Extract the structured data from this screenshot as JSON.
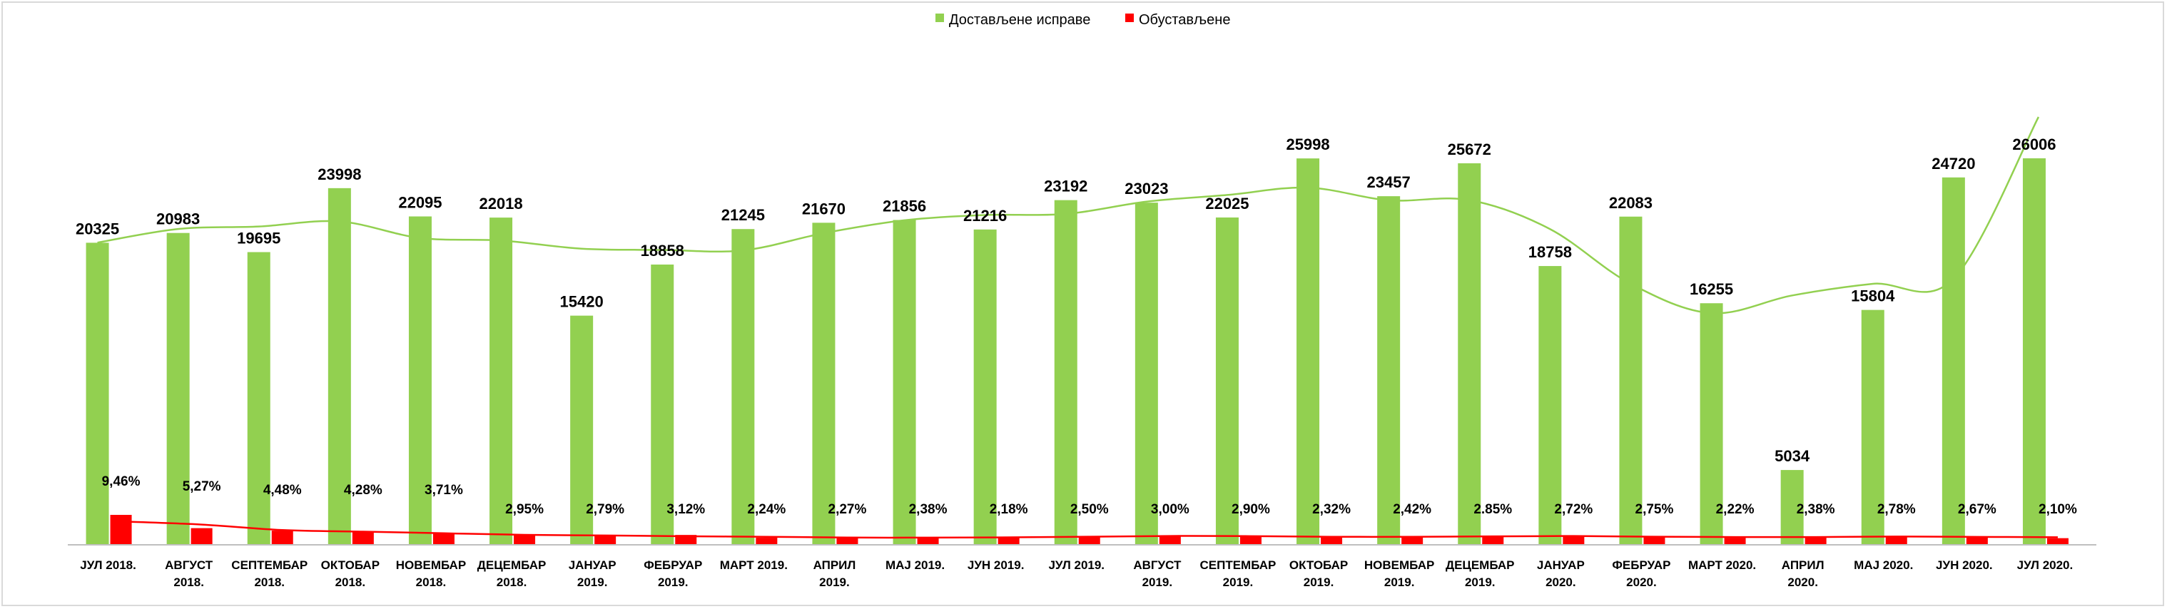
{
  "chart_data": {
    "type": "bar",
    "categories": [
      [
        "ЈУЛ 2018."
      ],
      [
        "АВГУСТ",
        "2018."
      ],
      [
        "СЕПТЕМБАР",
        "2018."
      ],
      [
        "ОКТОБАР",
        "2018."
      ],
      [
        "НОВЕМБАР",
        "2018."
      ],
      [
        "ДЕЦЕМБАР",
        "2018."
      ],
      [
        "ЈАНУАР",
        "2019."
      ],
      [
        "ФЕБРУАР",
        "2019."
      ],
      [
        "МАРТ 2019."
      ],
      [
        "АПРИЛ",
        "2019."
      ],
      [
        "МАЈ 2019."
      ],
      [
        "ЈУН 2019."
      ],
      [
        "ЈУЛ 2019."
      ],
      [
        "АВГУСТ",
        "2019."
      ],
      [
        "СЕПТЕМБАР",
        "2019."
      ],
      [
        "ОКТОБАР",
        "2019."
      ],
      [
        "НОВЕМБАР",
        "2019."
      ],
      [
        "ДЕЦЕМБАР",
        "2019."
      ],
      [
        "ЈАНУАР",
        "2020."
      ],
      [
        "ФЕБРУАР",
        "2020."
      ],
      [
        "МАРТ 2020."
      ],
      [
        "АПРИЛ",
        "2020."
      ],
      [
        "МАЈ 2020."
      ],
      [
        "ЈУН 2020."
      ],
      [
        "ЈУЛ 2020."
      ]
    ],
    "series": [
      {
        "name": "Достављене исправе",
        "color": "#92d050",
        "values": [
          20325,
          20983,
          19695,
          23998,
          22095,
          22018,
          15420,
          18858,
          21245,
          21670,
          21856,
          21216,
          23192,
          23023,
          22025,
          25998,
          23457,
          25672,
          18758,
          22083,
          16255,
          5034,
          15804,
          24720,
          26006
        ],
        "labels": [
          "20325",
          "20983",
          "19695",
          "23998",
          "22095",
          "22018",
          "15420",
          "18858",
          "21245",
          "21670",
          "21856",
          "21216",
          "23192",
          "23023",
          "22025",
          "25998",
          "23457",
          "25672",
          "18758",
          "22083",
          "16255",
          "5034",
          "15804",
          "24720",
          "26006"
        ]
      },
      {
        "name": "Обустављене",
        "color": "#ff0000",
        "values": [
          9.46,
          5.27,
          4.48,
          4.28,
          3.71,
          2.95,
          2.79,
          3.12,
          2.24,
          2.27,
          2.38,
          2.18,
          2.5,
          3.0,
          2.9,
          2.32,
          2.42,
          2.85,
          2.72,
          2.75,
          2.22,
          2.38,
          2.78,
          2.67,
          2.1
        ],
        "labels": [
          "9,46%",
          "5,27%",
          "4,48%",
          "4,28%",
          "3,71%",
          "2,95%",
          "2,79%",
          "3,12%",
          "2,24%",
          "2,27%",
          "2,38%",
          "2,18%",
          "2,50%",
          "3,00%",
          "2,90%",
          "2,32%",
          "2,42%",
          "2.85%",
          "2,72%",
          "2,75%",
          "2,22%",
          "2,38%",
          "2,78%",
          "2,67%",
          "2,10%"
        ]
      }
    ],
    "trendlines": [
      {
        "series": "Достављене исправе",
        "kind": "polynomial",
        "color": "#92d050"
      },
      {
        "series": "Обустављене",
        "kind": "moving-average",
        "color": "#ff0000"
      }
    ],
    "legend_position": "top-center",
    "grid": false
  }
}
